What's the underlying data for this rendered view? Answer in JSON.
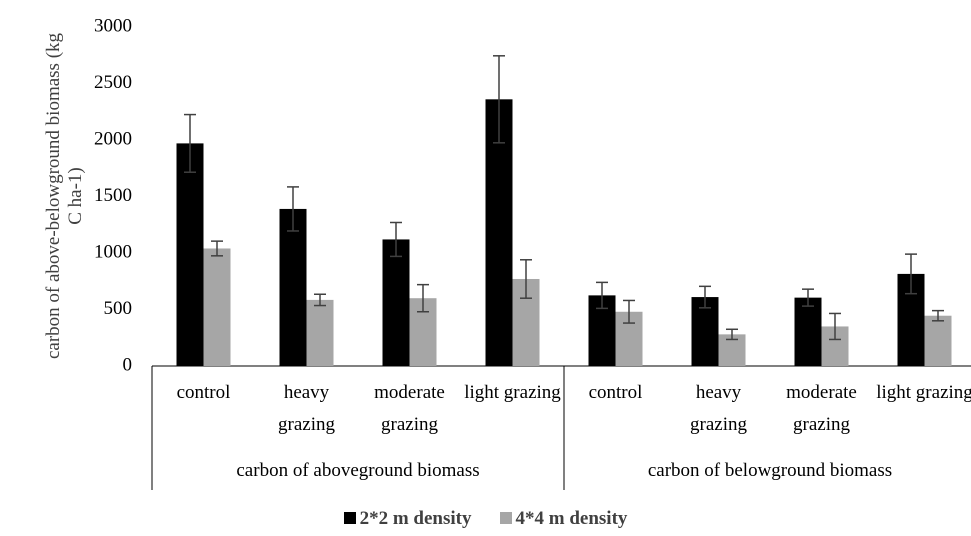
{
  "chart_data": {
    "type": "bar",
    "y_label": "carbon of above-belowground biomass (kg C ha-1)",
    "groups": [
      "carbon of aboveground biomass",
      "carbon of belowground biomass"
    ],
    "categories": [
      "control",
      "heavy grazing",
      "moderate grazing",
      "light grazing",
      "control",
      "heavy grazing",
      "moderate grazing",
      "light grazing"
    ],
    "series": [
      {
        "name": "2*2 m density",
        "color": "#000000",
        "values": [
          1970,
          1390,
          1120,
          2360,
          625,
          610,
          605,
          815
        ],
        "errors": [
          255,
          195,
          150,
          385,
          115,
          95,
          75,
          175
        ]
      },
      {
        "name": "4*4 m density",
        "color": "#a6a6a6",
        "values": [
          1040,
          585,
          600,
          770,
          480,
          280,
          350,
          445
        ],
        "errors": [
          65,
          50,
          120,
          170,
          100,
          45,
          115,
          45
        ]
      }
    ],
    "ylim": [
      0,
      3000
    ],
    "yticks": [
      0,
      500,
      1000,
      1500,
      2000,
      2500,
      3000
    ],
    "grid": false,
    "legend": "bottom"
  }
}
